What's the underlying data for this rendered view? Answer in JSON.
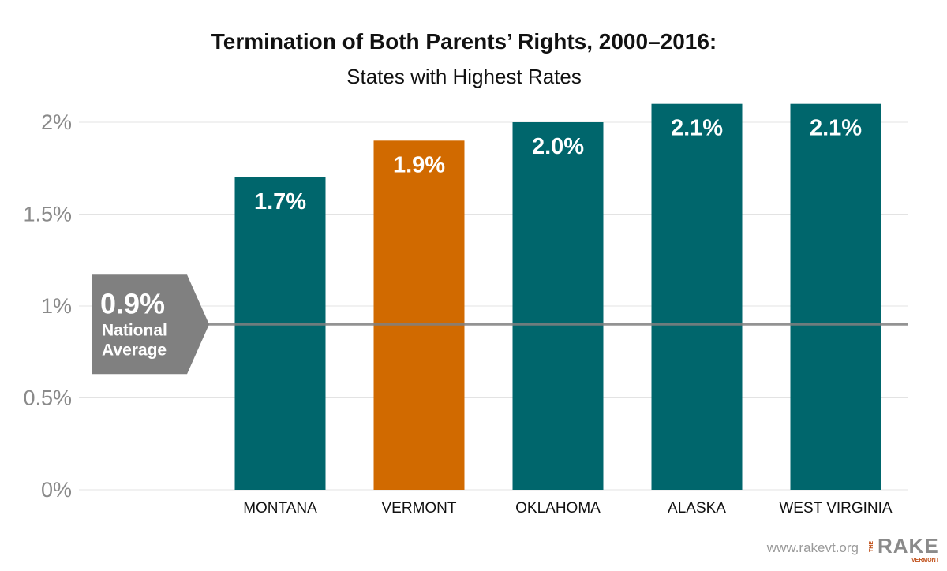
{
  "chart_data": {
    "type": "bar",
    "title": "Termination of Both Parents’ Rights, 2000–2016:",
    "subtitle": "States with Highest Rates",
    "categories": [
      "MONTANA",
      "VERMONT",
      "OKLAHOMA",
      "ALASKA",
      "WEST VIRGINIA"
    ],
    "values": [
      1.7,
      1.9,
      2.0,
      2.1,
      2.1
    ],
    "value_labels": [
      "1.7%",
      "1.9%",
      "2.0%",
      "2.1%",
      "2.1%"
    ],
    "highlight_category": "VERMONT",
    "ylim": [
      0,
      2
    ],
    "yticks": [
      0,
      0.5,
      1,
      1.5,
      2
    ],
    "ytick_labels": [
      "0%",
      "0.5%",
      "1%",
      "1.5%",
      "2%"
    ],
    "xlabel": "",
    "ylabel": "",
    "grid": true,
    "reference_line": {
      "value": 0.9,
      "value_label": "0.9%",
      "label_lines": [
        "National",
        "Average"
      ]
    },
    "colors": {
      "bar": "#00666c",
      "highlight": "#d16a00",
      "reference": "#808080",
      "grid": "#e3e3e3"
    }
  },
  "footer": {
    "url": "www.rakevt.org",
    "brand_the": "THE",
    "brand_name": "RAKE",
    "brand_sub": "VERMONT"
  }
}
